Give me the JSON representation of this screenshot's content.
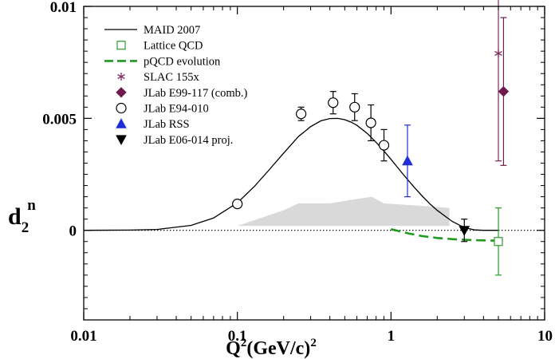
{
  "chart_data": {
    "type": "scatter",
    "x_scale": "log",
    "xlim": [
      0.01,
      10
    ],
    "ylim": [
      -0.004,
      0.01
    ],
    "x_ticks": [
      {
        "value": 0.01,
        "label": "0.01"
      },
      {
        "value": 0.1,
        "label": "0.1"
      },
      {
        "value": 1,
        "label": "1"
      },
      {
        "value": 10,
        "label": "10"
      }
    ],
    "y_ticks": [
      {
        "value": 0,
        "label": "0"
      },
      {
        "value": 0.005,
        "label": "0.005"
      },
      {
        "value": 0.01,
        "label": "0.01"
      }
    ],
    "xlabel": {
      "base": "Q",
      "sup1": "2",
      "mid": "(GeV/c)",
      "sup2": "2"
    },
    "ylabel": {
      "base": "d",
      "sub": "2",
      "sup": "n"
    },
    "grid": false,
    "legend_position": "top-left",
    "zero_line": "dotted",
    "colors": {
      "maid": "#000000",
      "lattice": "#2e9b2e",
      "pqcd": "#1f9a1f",
      "slac": "#7a2a5a",
      "e99": "#6e1a4e",
      "e94": "#000000",
      "rss": "#1f2fd6",
      "e06": "#000000",
      "band": "#d9d9d9"
    },
    "series": [
      {
        "name": "MAID 2007",
        "kind": "curve",
        "x": [
          0.01,
          0.02,
          0.03,
          0.05,
          0.07,
          0.1,
          0.13,
          0.16,
          0.2,
          0.25,
          0.3,
          0.35,
          0.4,
          0.45,
          0.5,
          0.55,
          0.6,
          0.7,
          0.8,
          0.9,
          1.0,
          1.2,
          1.4,
          1.6,
          1.8,
          2.0,
          2.5,
          3.0,
          3.5,
          4.0,
          5.0
        ],
        "y": [
          0.0,
          1e-05,
          4e-05,
          0.00022,
          0.00055,
          0.00123,
          0.00198,
          0.00268,
          0.00345,
          0.00419,
          0.00463,
          0.00489,
          0.00499,
          0.005,
          0.00494,
          0.00483,
          0.00469,
          0.00433,
          0.00393,
          0.00354,
          0.00317,
          0.0025,
          0.00196,
          0.00152,
          0.00117,
          0.00089,
          0.0004,
          0.00012,
          2e-05,
          0.0,
          0.0
        ]
      },
      {
        "name": "pQCD evolution",
        "kind": "dashed-curve",
        "x": [
          1.0,
          1.3,
          1.6,
          2.0,
          2.5,
          3.0,
          3.5,
          4.0,
          4.5,
          5.0
        ],
        "y": [
          5e-05,
          -0.00014,
          -0.00026,
          -0.00034,
          -0.00039,
          -0.00042,
          -0.00044,
          -0.00045,
          -0.00046,
          -0.00046
        ]
      },
      {
        "name": "Lattice QCD",
        "kind": "points",
        "marker": "open-square",
        "points": [
          {
            "x": 5.0,
            "y": -0.0005,
            "err": 0.0015
          }
        ]
      },
      {
        "name": "SLAC 155x",
        "kind": "points",
        "marker": "asterisk",
        "points": [
          {
            "x": 5.0,
            "y": 0.0079,
            "err": 0.0048
          }
        ]
      },
      {
        "name": "JLab E99-117 (comb.)",
        "kind": "points",
        "marker": "filled-diamond",
        "points": [
          {
            "x": 5.4,
            "y": 0.0062,
            "err": 0.0033
          }
        ]
      },
      {
        "name": "JLab E94-010",
        "kind": "points",
        "marker": "open-circle",
        "points": [
          {
            "x": 0.1,
            "y": 0.00118,
            "err": 0.0001
          },
          {
            "x": 0.26,
            "y": 0.0052,
            "err": 0.0003
          },
          {
            "x": 0.42,
            "y": 0.0057,
            "err": 0.0005
          },
          {
            "x": 0.58,
            "y": 0.0055,
            "err": 0.0006
          },
          {
            "x": 0.74,
            "y": 0.0048,
            "err": 0.0008
          },
          {
            "x": 0.9,
            "y": 0.0038,
            "err": 0.0007
          }
        ]
      },
      {
        "name": "JLab RSS",
        "kind": "points",
        "marker": "filled-triangle-up",
        "points": [
          {
            "x": 1.28,
            "y": 0.0031,
            "err": 0.0016
          }
        ]
      },
      {
        "name": "JLab E06-014 proj.",
        "kind": "points",
        "marker": "filled-triangle-down",
        "points": [
          {
            "x": 3.0,
            "y": 0.0,
            "err": 0.0005
          }
        ]
      }
    ],
    "band": {
      "x": [
        0.1,
        0.2,
        0.25,
        0.4,
        0.6,
        0.75,
        0.9,
        1.5,
        2.4,
        2.4,
        0.1
      ],
      "y": [
        0.0002,
        0.0009,
        0.0012,
        0.0012,
        0.0014,
        0.0015,
        0.0012,
        0.0011,
        0.001,
        0.0002,
        0.0002
      ]
    }
  }
}
